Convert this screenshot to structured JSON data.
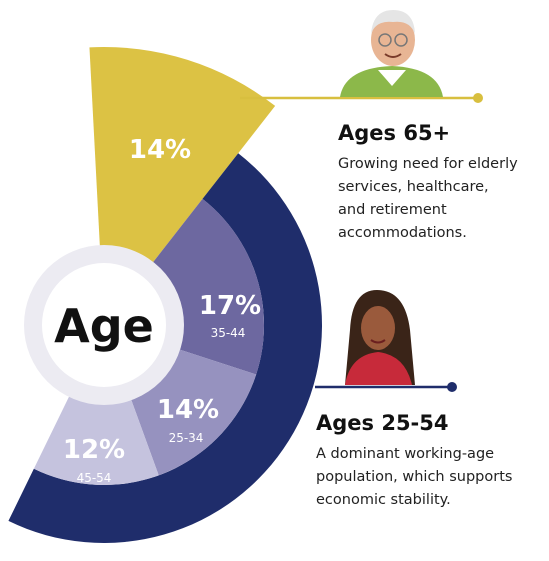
{
  "center_label": "Age",
  "segments": [
    {
      "percent": "14%"
    },
    {
      "percent": "17%",
      "range": "35-44"
    },
    {
      "percent": "14%",
      "range": "25-34"
    },
    {
      "percent": "12%",
      "range": "45-54"
    }
  ],
  "callouts": [
    {
      "title": "Ages 65+",
      "lines": [
        "Growing need for elderly",
        "services, healthcare,",
        "and retirement",
        "accommodations."
      ]
    },
    {
      "title": "Ages 25-54",
      "lines": [
        "A dominant working-age",
        "population, which supports",
        "economic stability."
      ]
    }
  ]
}
